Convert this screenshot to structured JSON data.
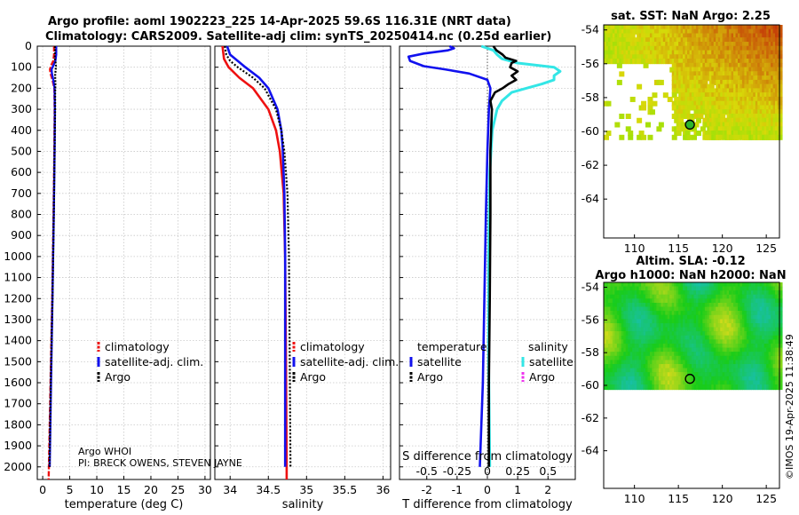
{
  "title": {
    "line1": "Argo profile: aoml 1902223_225 14-Apr-2025 59.6S 116.31E (NRT data)",
    "line2": "Climatology: CARS2009. Satellite-adj clim: synTS_20250414.nc (0.25d earlier)"
  },
  "credit": "©IMOS 19-Apr-2025 11:38:49",
  "float_info": {
    "line1": "Argo WHOI",
    "line2": "PI: BRECK OWENS, STEVEN JAYNE"
  },
  "colors": {
    "climatology": "#ee1111",
    "satellite": "#1111ee",
    "argo": "#000000",
    "temp_diff": "#1111ee",
    "sal_diff": "#33e6e6",
    "sal_sat": "#33e6e6",
    "sal_argo": "#ee33ee"
  },
  "chart_data": [
    {
      "type": "line",
      "id": "temperature",
      "xlabel": "temperature (deg C)",
      "ylabel": "",
      "xlim": [
        -1,
        31
      ],
      "ylim": [
        2060,
        0
      ],
      "xticks": [
        "0",
        "5",
        "10",
        "15",
        "20",
        "25",
        "30"
      ],
      "xtick_values": [
        0,
        5,
        10,
        15,
        20,
        25,
        30
      ],
      "yticks": [
        "0",
        "100",
        "200",
        "300",
        "400",
        "500",
        "600",
        "700",
        "800",
        "900",
        "1000",
        "1100",
        "1200",
        "1300",
        "1400",
        "1500",
        "1600",
        "1700",
        "1800",
        "1900",
        "2000"
      ],
      "ytick_values": [
        0,
        100,
        200,
        300,
        400,
        500,
        600,
        700,
        800,
        900,
        1000,
        1100,
        1200,
        1300,
        1400,
        1500,
        1600,
        1700,
        1800,
        1900,
        2000
      ],
      "legend": {
        "position": "bottom-right",
        "entries": [
          "climatology",
          "satellite-adj. clim.",
          "Argo"
        ]
      },
      "series": [
        {
          "name": "climatology",
          "depth": [
            0,
            40,
            70,
            90,
            110,
            130,
            160,
            200,
            300,
            500,
            800,
            1200,
            1600,
            2060
          ],
          "values": [
            2.1,
            2.1,
            1.95,
            1.6,
            1.35,
            1.45,
            1.8,
            2.15,
            2.2,
            2.15,
            2.0,
            1.75,
            1.45,
            1.1
          ]
        },
        {
          "name": "satellite-adj. clim.",
          "depth": [
            0,
            40,
            70,
            90,
            110,
            130,
            160,
            200,
            300,
            500,
            800,
            1200,
            1600,
            2000
          ],
          "values": [
            2.5,
            2.5,
            2.35,
            2.0,
            1.65,
            1.7,
            1.95,
            2.2,
            2.25,
            2.2,
            2.05,
            1.8,
            1.55,
            1.3
          ]
        },
        {
          "name": "Argo",
          "depth": [
            0,
            20,
            40,
            60,
            80,
            95,
            110,
            140,
            180,
            220,
            300,
            500,
            800,
            1200,
            1600,
            2000
          ],
          "values": [
            2.25,
            2.3,
            2.25,
            2.25,
            2.4,
            2.45,
            2.4,
            2.3,
            2.35,
            2.3,
            2.3,
            2.2,
            2.05,
            1.8,
            1.5,
            1.25
          ]
        }
      ]
    },
    {
      "type": "line",
      "id": "salinity",
      "xlabel": "salinity",
      "ylabel": "",
      "xlim": [
        33.8,
        36.1
      ],
      "ylim": [
        2060,
        0
      ],
      "xticks": [
        "34",
        "34.5",
        "35",
        "35.5",
        "36"
      ],
      "xtick_values": [
        34,
        34.5,
        35,
        35.5,
        36
      ],
      "legend": {
        "position": "bottom-right",
        "entries": [
          "climatology",
          "satellite-adj. clim.",
          "Argo"
        ]
      },
      "series": [
        {
          "name": "climatology",
          "depth": [
            0,
            60,
            100,
            150,
            200,
            300,
            400,
            500,
            700,
            1000,
            1500,
            2000,
            2060
          ],
          "values": [
            33.9,
            33.92,
            33.98,
            34.12,
            34.3,
            34.5,
            34.6,
            34.65,
            34.7,
            34.72,
            34.73,
            34.74,
            34.74
          ]
        },
        {
          "name": "satellite-adj. clim.",
          "depth": [
            0,
            40,
            70,
            100,
            150,
            200,
            300,
            400,
            500,
            700,
            1000,
            1500,
            2000
          ],
          "values": [
            33.96,
            34.0,
            34.1,
            34.2,
            34.38,
            34.5,
            34.62,
            34.67,
            34.69,
            34.71,
            34.72,
            34.72,
            34.72
          ]
        },
        {
          "name": "Argo",
          "depth": [
            0,
            40,
            70,
            100,
            150,
            200,
            300,
            400,
            500,
            700,
            1000,
            1500,
            2000
          ],
          "values": [
            33.93,
            33.95,
            34.0,
            34.1,
            34.3,
            34.45,
            34.6,
            34.67,
            34.71,
            34.75,
            34.77,
            34.78,
            34.79
          ]
        }
      ]
    },
    {
      "type": "line",
      "id": "difference",
      "xlabel": "T difference from climatology",
      "xlabel_top": "S difference from climatology",
      "xlim": [
        -2.9,
        2.9
      ],
      "ylim": [
        2060,
        0
      ],
      "xticks": [
        "-2",
        "-1",
        "0",
        "1",
        "2"
      ],
      "xtick_values": [
        -2,
        -1,
        0,
        1,
        2
      ],
      "sticks": [
        "-0.5",
        "-0.25",
        "0",
        "0.25",
        "0.5"
      ],
      "stick_values": [
        -0.5,
        -0.25,
        0,
        0.25,
        0.5
      ],
      "legend_temperature": {
        "title": "temperature",
        "entries": [
          "satellite",
          "Argo"
        ]
      },
      "legend_salinity": {
        "title": "salinity",
        "entries": [
          "satellite",
          "Argo"
        ]
      },
      "series": [
        {
          "name": "temperature satellite",
          "depth": [
            0,
            10,
            20,
            35,
            50,
            70,
            95,
            110,
            130,
            160,
            200,
            300,
            500,
            800,
            1200,
            1600,
            2000
          ],
          "values": [
            -1.25,
            -1.1,
            -1.3,
            -2.1,
            -2.6,
            -2.55,
            -2.1,
            -1.4,
            -0.6,
            0.0,
            0.1,
            0.05,
            0.0,
            -0.05,
            -0.1,
            -0.15,
            -0.25
          ]
        },
        {
          "name": "temperature Argo",
          "depth": [
            0,
            20,
            40,
            55,
            70,
            80,
            100,
            120,
            140,
            160,
            180,
            200,
            220,
            260,
            300,
            500,
            800,
            1200,
            1600,
            2000
          ],
          "values": [
            0.2,
            0.3,
            0.5,
            0.6,
            0.95,
            0.8,
            0.75,
            1.0,
            0.8,
            0.95,
            0.7,
            0.5,
            0.25,
            0.1,
            0.15,
            0.1,
            0.1,
            0.08,
            0.05,
            0.05
          ]
        },
        {
          "name": "salinity satellite",
          "depth": [
            0,
            20,
            40,
            60,
            80,
            100,
            120,
            140,
            160,
            180,
            200,
            220,
            260,
            300,
            400,
            600,
            1000,
            1500,
            2000
          ],
          "values": [
            -0.05,
            0.05,
            0.08,
            0.12,
            0.25,
            0.55,
            0.6,
            0.55,
            0.55,
            0.45,
            0.32,
            0.2,
            0.12,
            0.08,
            0.04,
            0.02,
            0.01,
            0.01,
            0.02
          ]
        }
      ]
    },
    {
      "type": "heatmap",
      "id": "sst",
      "title": "sat. SST: NaN Argo: 2.25",
      "xlim": [
        106.5,
        126.5
      ],
      "ylim": [
        -53.7,
        -66.3
      ],
      "xticks": [
        "110",
        "115",
        "120",
        "125"
      ],
      "xtick_values": [
        110,
        115,
        120,
        125
      ],
      "yticks": [
        "-54",
        "-56",
        "-58",
        "-60",
        "-62",
        "-64"
      ],
      "ytick_values": [
        -54,
        -56,
        -58,
        -60,
        -62,
        -64
      ],
      "marker": {
        "lon": 116.31,
        "lat": -59.6
      }
    },
    {
      "type": "heatmap",
      "id": "sla",
      "title": "Altim. SLA: -0.12",
      "subtitle": "Argo h1000: NaN h2000: NaN",
      "xlim": [
        106.5,
        126.5
      ],
      "ylim": [
        -53.7,
        -66.3
      ],
      "xticks": [
        "110",
        "115",
        "120",
        "125"
      ],
      "xtick_values": [
        110,
        115,
        120,
        125
      ],
      "yticks": [
        "-54",
        "-56",
        "-58",
        "-60",
        "-62",
        "-64"
      ],
      "ytick_values": [
        -54,
        -56,
        -58,
        -60,
        -62,
        -64
      ],
      "marker": {
        "lon": 116.31,
        "lat": -59.6
      }
    }
  ]
}
